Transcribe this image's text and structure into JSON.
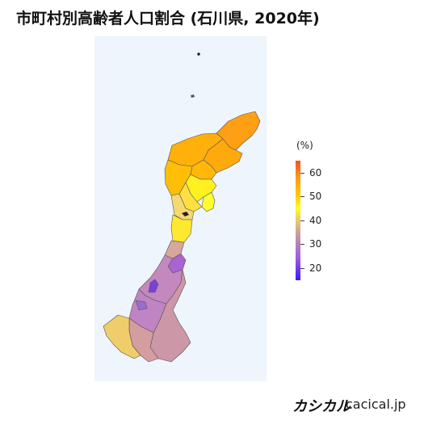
{
  "title": "市町村別高齢者人口割合 (石川県, 2020年)",
  "legend": {
    "unit": "(%)",
    "ticks": [
      "60",
      "50",
      "40",
      "30",
      "20"
    ],
    "min": 15,
    "max": 66
  },
  "colors": {
    "background": "#eef5fc",
    "border": "#5a5a5a"
  },
  "footer": {
    "brand": "カシカル",
    "site": "cacical.jp"
  }
}
